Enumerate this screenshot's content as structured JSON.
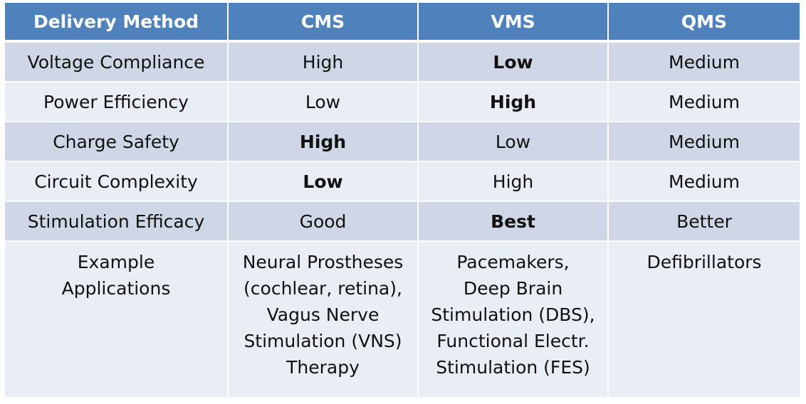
{
  "headers": [
    "Delivery Method",
    "CMS",
    "VMS",
    "QMS"
  ],
  "rows": [
    {
      "label": "Voltage Compliance",
      "cms": "High",
      "vms": "Low",
      "qms": "Medium"
    },
    {
      "label": "Power Efficiency",
      "cms": "Low",
      "vms": "High",
      "qms": "Medium"
    },
    {
      "label": "Charge Safety",
      "cms": "High",
      "vms": "Low",
      "qms": "Medium"
    },
    {
      "label": "Circuit Complexity",
      "cms": "Low",
      "vms": "High",
      "qms": "Medium"
    },
    {
      "label": "Stimulation Efficacy",
      "cms": "Good",
      "vms": "Best",
      "qms": "Better"
    }
  ],
  "applications": {
    "label_lines": [
      "Example",
      "Applications"
    ],
    "cms_lines": [
      "Neural Prostheses",
      "(cochlear, retina),",
      "Vagus Nerve",
      "Stimulation (VNS)",
      "Therapy"
    ],
    "vms_lines": [
      "Pacemakers,",
      "Deep Brain",
      "Stimulation (DBS),",
      "Functional Electr.",
      "Stimulation (FES)"
    ],
    "qms_lines": [
      "Defibrillators"
    ]
  },
  "colors": {
    "header_bg": "#4f81bd",
    "row_dark": "#cfd7e6",
    "row_light": "#e9edf4"
  }
}
